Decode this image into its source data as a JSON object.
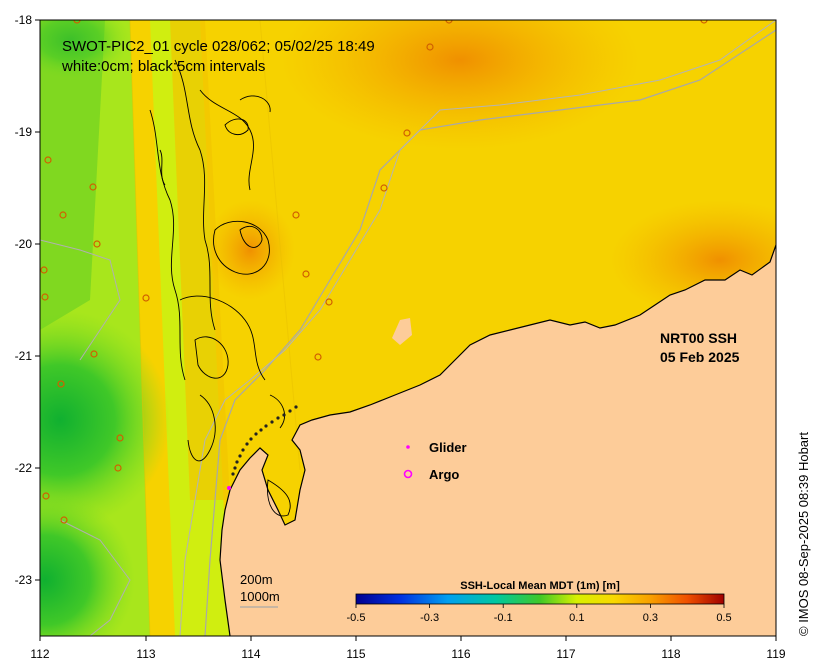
{
  "title_line1": "SWOT-PIC2_01 cycle 028/062; 05/02/25 18:49",
  "title_line2": "white:0cm; black:5cm intervals",
  "product_label": "NRT00 SSH",
  "product_date": "05 Feb 2025",
  "legend": {
    "glider_label": "Glider",
    "argo_label": "Argo",
    "glider_color": "#ff00ff",
    "argo_color": "#ff00ff"
  },
  "scale": {
    "depth1": "200m",
    "depth2": "1000m"
  },
  "colorbar": {
    "title": "SSH-Local Mean MDT (1m) [m]",
    "ticks": [
      "-0.5",
      "-0.3",
      "-0.1",
      "0.1",
      "0.3",
      "0.5"
    ]
  },
  "axes": {
    "x_ticks": [
      "112",
      "113",
      "114",
      "115",
      "116",
      "117",
      "118",
      "119"
    ],
    "y_ticks": [
      "-18",
      "-19",
      "-20",
      "-21",
      "-22",
      "-23"
    ]
  },
  "credit": "© IMOS 08-Sep-2025 08:39 Hobart",
  "colors": {
    "land": "#fdcc99",
    "sea_base": "#f6d200"
  }
}
